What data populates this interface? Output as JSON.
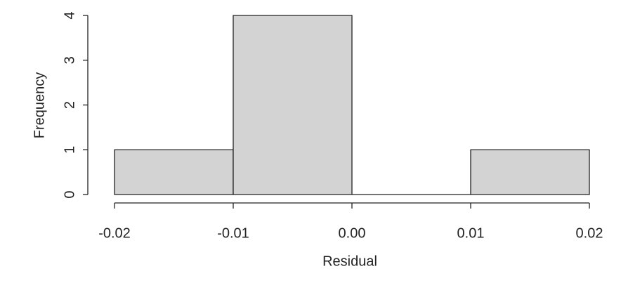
{
  "chart_data": {
    "type": "histogram",
    "xlabel": "Residual",
    "ylabel": "Frequency",
    "bins": [
      -0.02,
      -0.01,
      0,
      0.01,
      0.02
    ],
    "values": [
      1,
      4,
      0,
      1
    ],
    "color": "#d3d3d3",
    "xlim": [
      -0.02,
      0.02
    ],
    "xticks": [
      -0.02,
      -0.01,
      {
        "value": 0,
        "label": "0.00"
      },
      0.01,
      0.02
    ],
    "ylim": [
      0,
      4
    ],
    "yticks": [
      0,
      1,
      2,
      3,
      4
    ]
  }
}
